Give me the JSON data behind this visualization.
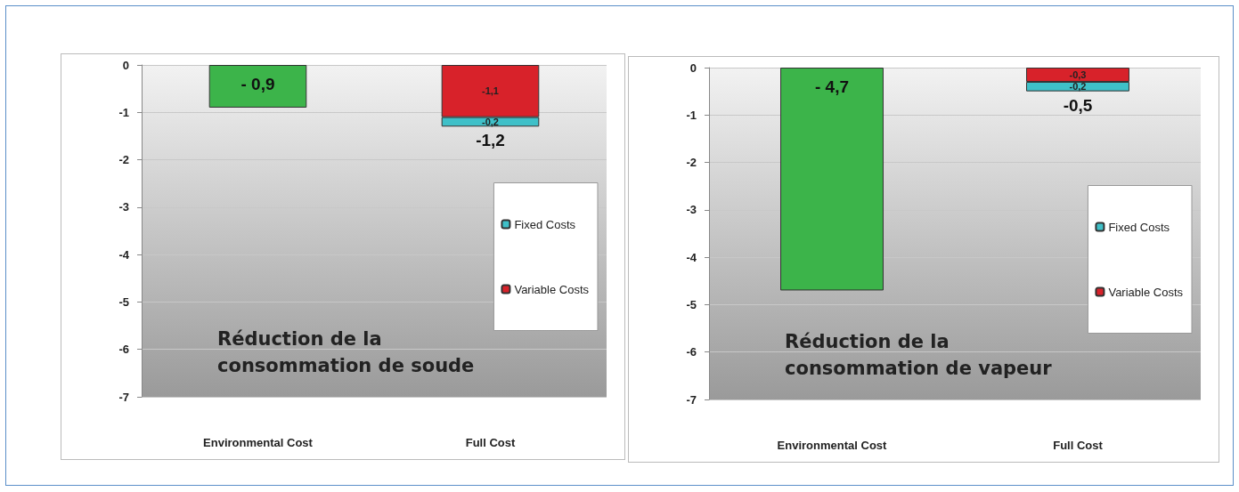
{
  "chart_data": [
    {
      "type": "bar",
      "title": "Réduction de la consommation de soude",
      "categories": [
        "Environmental Cost",
        "Full Cost"
      ],
      "stacked": true,
      "series": [
        {
          "color": "#3cb44a",
          "values": [
            -0.9,
            null
          ],
          "value_labels": [
            "- 0,9",
            null
          ]
        },
        {
          "name": "Variable Costs",
          "color": "#d8222a",
          "values": [
            null,
            -1.1
          ],
          "value_labels": [
            null,
            "-1,1"
          ]
        },
        {
          "name": "Fixed Costs",
          "color": "#3fc0c8",
          "values": [
            null,
            -0.2
          ],
          "value_labels": [
            null,
            "-0,2"
          ]
        }
      ],
      "totals": [
        null,
        "-1,2"
      ],
      "ylim": [
        -7,
        0
      ],
      "yticks": [
        0,
        -1,
        -2,
        -3,
        -4,
        -5,
        -6,
        -7
      ],
      "grid": "y",
      "legend": "right"
    },
    {
      "type": "bar",
      "title": "Réduction de la consommation de vapeur",
      "categories": [
        "Environmental Cost",
        "Full Cost"
      ],
      "stacked": true,
      "series": [
        {
          "color": "#3cb44a",
          "values": [
            -4.7,
            null
          ],
          "value_labels": [
            "- 4,7",
            null
          ]
        },
        {
          "name": "Variable Costs",
          "color": "#d8222a",
          "values": [
            null,
            -0.3
          ],
          "value_labels": [
            null,
            "-0,3"
          ]
        },
        {
          "name": "Fixed Costs",
          "color": "#3fc0c8",
          "values": [
            null,
            -0.2
          ],
          "value_labels": [
            null,
            "-0,2"
          ]
        }
      ],
      "totals": [
        null,
        "-0,5"
      ],
      "ylim": [
        -7,
        0
      ],
      "yticks": [
        0,
        -1,
        -2,
        -3,
        -4,
        -5,
        -6,
        -7
      ],
      "grid": "y",
      "legend": "right"
    }
  ]
}
